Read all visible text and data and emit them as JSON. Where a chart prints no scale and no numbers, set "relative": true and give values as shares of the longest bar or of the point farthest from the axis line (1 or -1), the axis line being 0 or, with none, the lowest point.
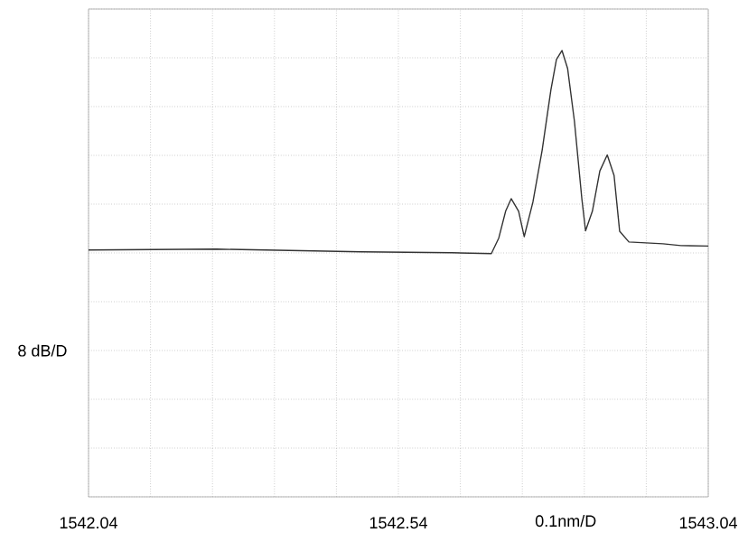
{
  "chart_data": {
    "type": "line",
    "relative": true,
    "xlabel": "0.1nm/D",
    "ylabel": "8 dB/D",
    "grid": true,
    "color": "#333333",
    "xlim": [
      1542.04,
      1543.04
    ],
    "xticks": [
      {
        "value": 1542.04,
        "label": "1542.04"
      },
      {
        "value": 1542.14,
        "label": null
      },
      {
        "value": 1542.24,
        "label": null
      },
      {
        "value": 1542.34,
        "label": null
      },
      {
        "value": 1542.44,
        "label": null
      },
      {
        "value": 1542.54,
        "label": "1542.54"
      },
      {
        "value": 1542.64,
        "label": null
      },
      {
        "value": 1542.74,
        "label": null
      },
      {
        "value": 1542.84,
        "label": null
      },
      {
        "value": 1542.94,
        "label": null
      },
      {
        "value": 1543.04,
        "label": "1543.04"
      }
    ],
    "x": [
      1542.04,
      1542.247,
      1542.48,
      1542.626,
      1542.69,
      1542.702,
      1542.713,
      1542.722,
      1542.734,
      1542.743,
      1542.757,
      1542.772,
      1542.786,
      1542.795,
      1542.804,
      1542.813,
      1542.824,
      1542.836,
      1542.842,
      1542.853,
      1542.865,
      1542.877,
      1542.888,
      1542.897,
      1542.912,
      1542.967,
      1542.996,
      1543.04
    ],
    "values": [
      0.553,
      0.555,
      0.549,
      0.547,
      0.545,
      0.58,
      0.64,
      0.668,
      0.64,
      0.583,
      0.66,
      0.777,
      0.911,
      0.98,
      1.0,
      0.96,
      0.842,
      0.668,
      0.596,
      0.64,
      0.73,
      0.766,
      0.72,
      0.595,
      0.571,
      0.567,
      0.563,
      0.562
    ]
  }
}
